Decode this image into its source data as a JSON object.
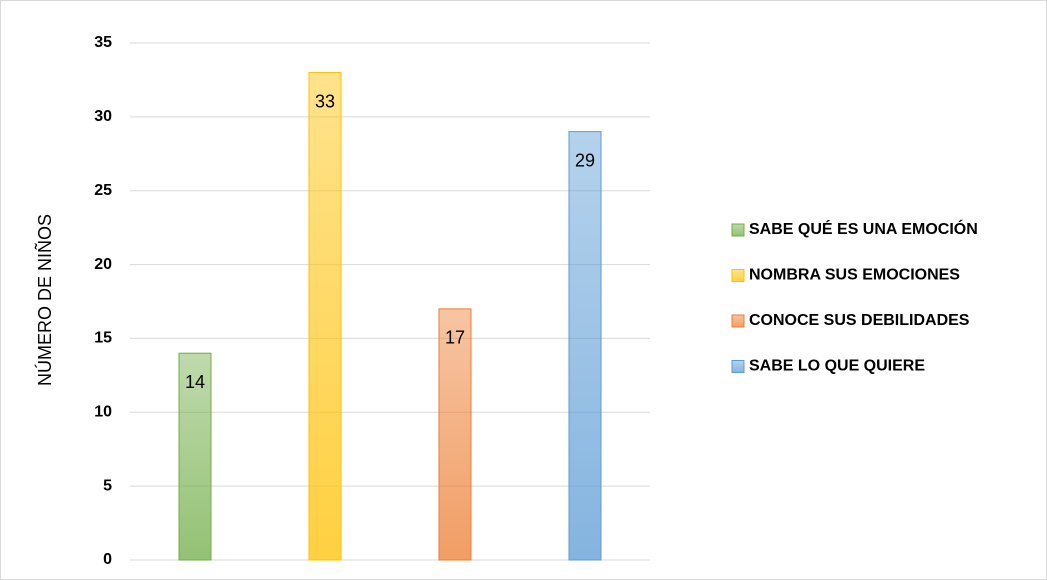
{
  "chart_data": {
    "type": "bar",
    "y_label": "NÚMERO DE NIÑOS",
    "series": [
      {
        "name": "SABE QUÉ ES UNA EMOCIÓN",
        "color": "#70ad47",
        "values": [
          14
        ]
      },
      {
        "name": "NOMBRA SUS EMOCIONES",
        "color": "#ffc000",
        "values": [
          33
        ]
      },
      {
        "name": "CONOCE SUS DEBILIDADES",
        "color": "#ed7d31",
        "values": [
          17
        ]
      },
      {
        "name": "SABE LO QUE QUIERE",
        "color": "#5b9bd5",
        "values": [
          29
        ]
      }
    ],
    "ylim": [
      0,
      35
    ],
    "yticks": [
      0,
      5,
      10,
      15,
      20,
      25,
      30,
      35
    ],
    "grid": true,
    "legend": "right"
  }
}
